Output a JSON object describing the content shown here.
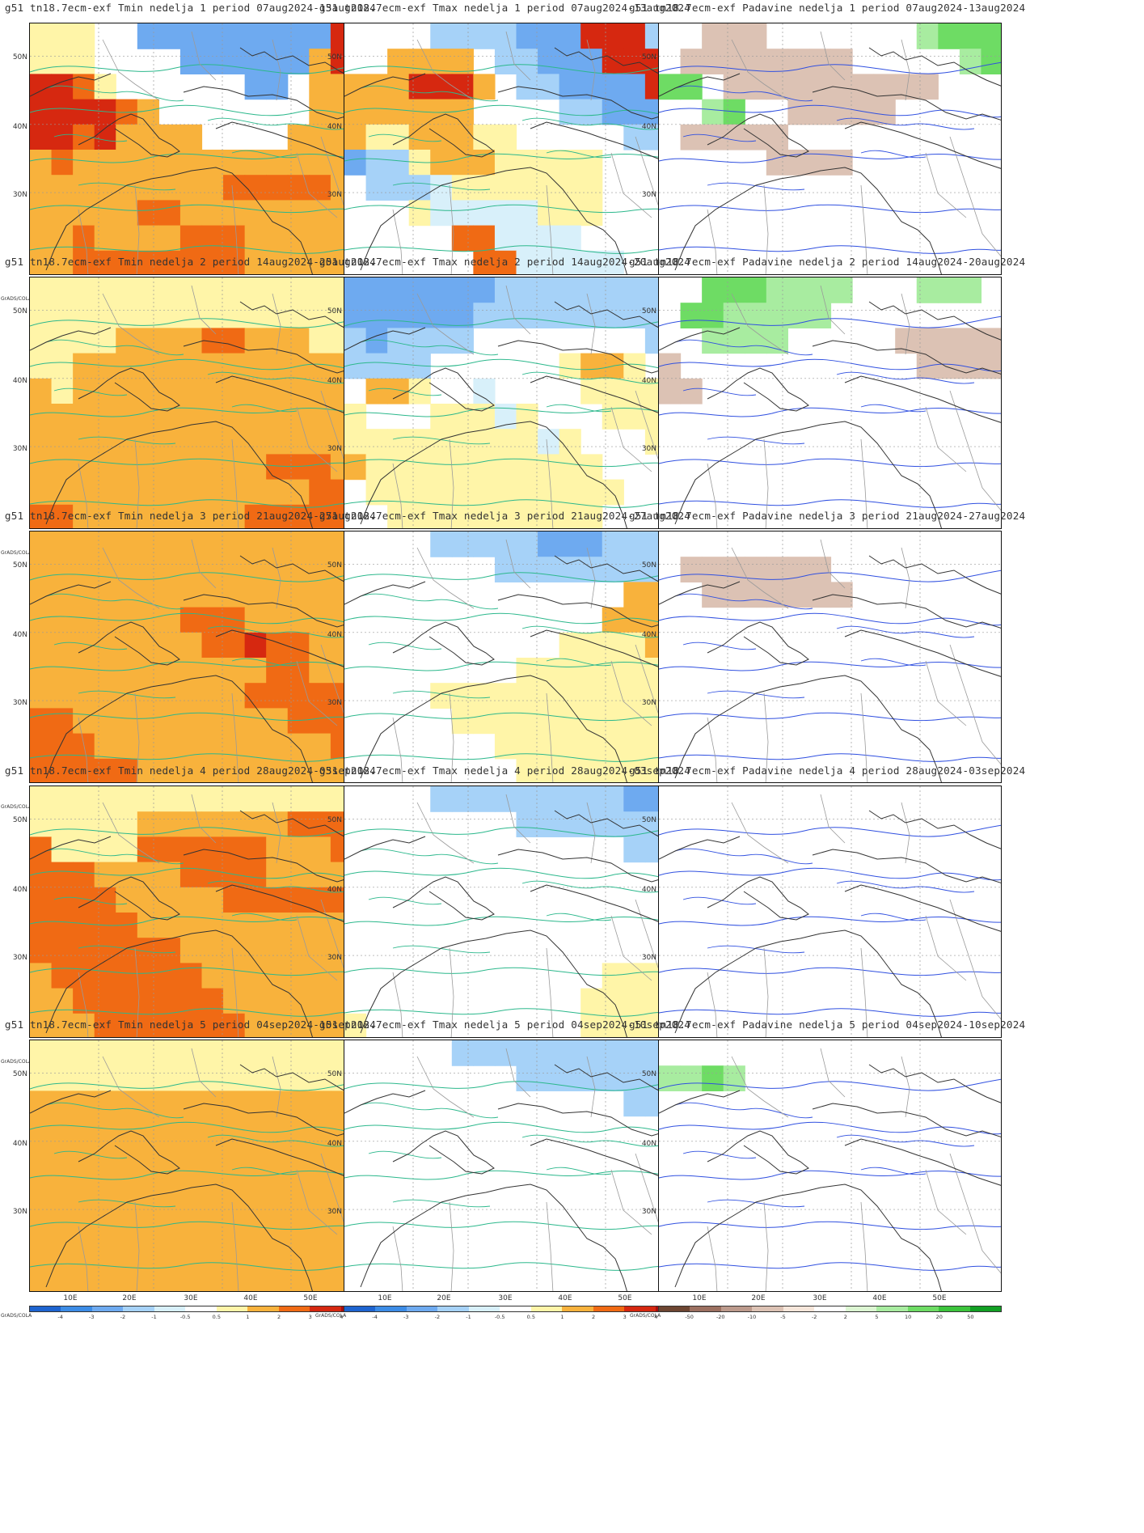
{
  "credit": "GrADS/COLA",
  "lat_labels": [
    "50N",
    "40N",
    "30N"
  ],
  "lon_labels": [
    "10E",
    "20E",
    "30E",
    "40E",
    "50E"
  ],
  "temp_scale": {
    "labels": [
      "-4",
      "-3",
      "-2",
      "-1",
      "-0.5",
      "0.5",
      "1",
      "2",
      "3",
      "4"
    ],
    "colors": [
      "#1e64d0",
      "#3c8ce6",
      "#6eaaf0",
      "#a6d2f8",
      "#d8f0fa",
      "#ffffff",
      "#fff5a8",
      "#f8b23c",
      "#f06a14",
      "#d62810",
      "#a80c0c"
    ]
  },
  "precip_scale": {
    "labels": [
      "-50",
      "-20",
      "-10",
      "-5",
      "-2",
      "2",
      "5",
      "10",
      "20",
      "50"
    ],
    "colors": [
      "#6e4632",
      "#9c7060",
      "#bc9a8c",
      "#dcc2b4",
      "#f6e6da",
      "#ffffff",
      "#dcf6d2",
      "#a8eca0",
      "#6edc64",
      "#3cc43c",
      "#12a024"
    ]
  },
  "rows": [
    {
      "week": "1",
      "panels": [
        {
          "var": "Tmin",
          "title": "g51 tn18.7ecm-exf Tmin nedelja 1 period 07aug2024-13aug2024",
          "cells": "YYYWWBBBBBBBBBDDYYYWWWWBBBBBBODDDDRYWWWWWWBBWOODDDDDROWWWWWWWOODDDRDOOOOWWWWOOOOOROOOOOOOOOOOOOOOOOOOOOOORRRRROOOOOOORROOOOOOOOOOOROOOORRROOOOOOOORRRRRRRROOOOOOOOOOOOOORRR"
        },
        {
          "var": "Tmax",
          "title": "g51 tn18.7ecm-exf Tmax nedelja 1 period 07aug2024-13aug2024",
          "cells": "WWWWLLLLBBBDDDLLWWOOOOWLLBBBDDDROOODDDOWLLBBBBDROOOOOOWWWWLLBBBBOYYOOOYYWWWWWLLLBLLYOOOYYYYYWWWWWLLLCYYYYYYYWWWWWWWYCCCCCYYYWWWWWWWWWRRCCCCWWWWWWWWWWWRRCCCCCWWWWWWWWWRR"
        },
        {
          "var": "Padavine",
          "title": "g51 tn18.7ecm-exf Padavine nedelja 1 period 07aug2024-13aug2024",
          "cells": "WWFFFWWWWWWWNGGGWFFFFFFFFWWWWWNGGGWFFFFFFFFFFWWWWWNGWWFFFFFWWWWWWFFFFFWWWWWWWWWWWWWWWFFFFWWWWWWWWWWWWWWWWWWWWWWWWWWWWWWWWWWWWWWWWWWWWWWWWWWWWWWWWWWWWWWWWWWWWWWWWWWWWW"
        }
      ]
    },
    {
      "week": "2",
      "panels": [
        {
          "var": "Tmin",
          "title": "g51 tn18.7ecm-exf Tmin nedelja 2 period 14aug2024-20aug2024",
          "cells": "YYYYYYYYYYYYYYYYYYYYYYYYYYYYYYYYYYYYOOOORROOOYYYYYOOOOOOOOOOOOOOOYOOOOOOOOOOOOOOOOOOOOOOOOOOOOOOOOOOOOOOOOOOOOOOOOOOOOOOOOORRROOOOOOOOOOOOOOORRRRROOOOOOOORRRRRRRRRRRROO"
        },
        {
          "var": "Tmax",
          "title": "g51 tn18.7ecm-exf Tmax nedelja 2 period 14aug2024-20aug2024",
          "cells": "BBBBBBBLLLLLLLLLBBBBBBLLLLLLLLLLLBLLLLWWWWWWWWLLLLLLWWWWWWYOOYWWWOOYWWCWWWWYYYYYYWWWYYYCYWWWYYYYYYYYYYYYYCYWWWYYOYYYYYYYYYYYWWWWWYYYYYYYYYYYYWWWWWYYYYYYYYYYWWWWWWYYYYYYYYY"
        },
        {
          "var": "Padavine",
          "title": "g51 tn18.7ecm-exf Padavine nedelja 2 period 14aug2024-20aug2024",
          "cells": "WWGGGNNNNWWWNNNWWGGNNNNNWWWWWWWWWWNNNNWWWWWFFFFFFWWWWWWWWWWWFFFFFFWWWWWWWWWWWWWWWWWWWWWWWWWWWWWWWWWWWWWWWWWWWWWWWWWWWWWWWWWWWWWWWWWWWWWWWWWWWWWWWWWWWWWWWWWWWWWWWWWWWWW"
        }
      ]
    },
    {
      "week": "3",
      "panels": [
        {
          "var": "Tmin",
          "title": "g51 tn18.7ecm-exf Tmin nedelja 3 period 21aug2024-27aug2024",
          "cells": "OOOOOOOOOOOOOOOOOOOOOOOOOOOOOOOOOOOOOOOOOOOOOOOOOOOOOOORRROOOOOOOOOOOOOORRDRROOOOOOOOOOOOOORROOOOOOOOOOOOORRRRRRRROOOOOOOOOORRRRRRROOOOOOOOOOORRRRRRROOOOOOOOOORRRRRRRRRO"
        },
        {
          "var": "Tmax",
          "title": "g51 tn18.7ecm-exf Tmax nedelja 3 period 21aug2024-27aug2024",
          "cells": "WWWWLLLLLBBBLLLLWWWWWWWLLLLLLLLLWWWWWWWWWWWWWOOWWWWWWWWWWWWWOOOWWWWWWWWWWWYYYYOOWWWWWWWWYYYYYYYYWWWWYYYYYYYYYYYWWWWWWYYYYYYYYYYWWWWWWWWYYYYYYYYWWWWWWWWWYYYYYYYYWWWWWWWWW"
        },
        {
          "var": "Padavine",
          "title": "g51 tn18.7ecm-exf Padavine nedelja 3 period 21aug2024-27aug2024",
          "cells": "WWWWWWWWWWWWWWWWWFFFFFFFWWWWWWWWWWFFFFFFFWWWWWWWWWWWWWWWWWWWWWWWWWWWWWWWWWWWWWWWWWWWWWWWWWWWWWWWWWWWWWWWWWWWWWWWWWWWWWWWWWWWWWWWWWWWWWWWWWWWWWWWWWWWWWWWWWWWWWWWWWWWWW"
        }
      ]
    },
    {
      "week": "4",
      "panels": [
        {
          "var": "Tmin",
          "title": "g51 tn18.7ecm-exf Tmin nedelja 4 period 28aug2024-03sep2024",
          "cells": "YYYYYYYYYYYYYYYYYYYYYOOOOOOORRRRRYYYYRRRRRROOORRRRROOOORRRROOOOORRRROOOOORRRRRRRRRRRROOOOOOOOOOORRRRRRROOOOOOOOOORRRRRRROOOOOOOOOORRRRRRROOOOOOOOOORRRRRRROOOOOOOOOORRRRRRRRR"
        },
        {
          "var": "Tmax",
          "title": "g51 tn18.7ecm-exf Tmax nedelja 4 period 28aug2024-03sep2024",
          "cells": "WWWWLLLLLLLLLBBBWWWWWWWWLLLLLLLLWWWWWWWWWWWWWLLLWWWWWWWWWWWWWWWWWWWWWWWWWWWWWWWWWWWWWWWWWWWWWWWWWWWWWWWWWWWWWWWWWWWWWWWWWWWWYYYWWWWWWWWWWWWYYYYYYWWWWWWWWWWYYYYYYYWWWWWWW"
        },
        {
          "var": "Padavine",
          "title": "g51 tn18.7ecm-exf Padavine nedelja 4 period 28aug2024-03sep2024",
          "cells": "WWWWWWWWWWWWWWWWWWWWWWWWWWWWWWWWWWWWWWWWWWWWWWWWWWWWWWWWWWWWWWWWWWWWWWWWWWWWWWWWWWWWWWWWWWWWWWWWWWWWWWWWWWWWWWWWWWWWWWWWWWWWWWWWWWWWWWWWWWWWWWWWWWWWWWWWWWWWWWWWWWWWWW"
        }
      ]
    },
    {
      "week": "5",
      "panels": [
        {
          "var": "Tmin",
          "title": "g51 tn18.7ecm-exf Tmin nedelja 5 period 04sep2024-10sep2024",
          "cells": "YYYYYYYYYYYYYYYYYYYYYYYYYYYYYYYYOOOOOOOOOOOOOOOOOOOOOOOOOOOOOOOOOOOOOOOOOOOOOOOOOOOOOOOOOOOOOOOOOOOOOOOOOOOOOOOOOOOOOOOOOOOOOOOOOOOOOOOOOOOOOOOOOOOOOOOOOOOOOOOORRRROOOOO"
        },
        {
          "var": "Tmax",
          "title": "g51 tn18.7ecm-exf Tmax nedelja 5 period 04sep2024-10sep2024",
          "cells": "WWWWWLLLLLLLLLLLWWWWWWWWLLLLLLLLWWWWWWWWWWWWWLLLWWWWWWWWWWWWWWWWWWWWWWWWWWWWWWWWWWWWWWWWWWWWWWWWWWWWWWWWWWWWWWWWWWWWWWWWWWWWWWWWWWWWWWWWWWWWWWWWWWWWWWWWWWWWWWWWWWWWWW"
        },
        {
          "var": "Padavine",
          "title": "g51 tn18.7ecm-exf Padavine nedelja 5 period 04sep2024-10sep2024",
          "cells": "WWWWWWWWWWWWWWWWNNGNWWWWWWWWWWWWWWWWWWWWWWWWWWWWWWWWWWWWWWWWWWWWWWWWWWWWWWWWWWWWWWWWWWWWWWWWWWWWWWWWWWWWWWWWWWWWWWWWWWWWWWWWWWWWWWWWWWWWWWWWWWWWWWWWWWWWWWWWWWWWWWWWWW"
        }
      ]
    }
  ]
}
